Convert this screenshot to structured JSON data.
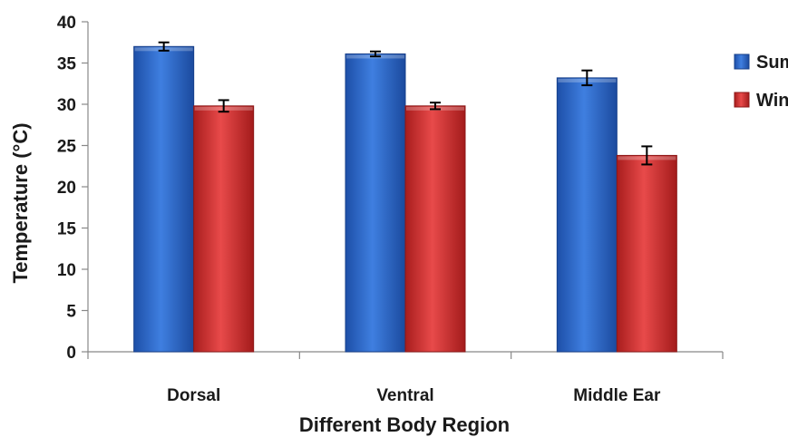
{
  "chart_data": {
    "type": "bar",
    "categories": [
      "Dorsal",
      "Ventral",
      "Middle Ear"
    ],
    "series": [
      {
        "name": "Summer",
        "color": "#2a64c8",
        "values": [
          37.0,
          36.1,
          33.2
        ],
        "errors": [
          0.5,
          0.3,
          0.9
        ]
      },
      {
        "name": "Winter",
        "color": "#d42a2a",
        "values": [
          29.8,
          29.8,
          23.8
        ],
        "errors": [
          0.7,
          0.4,
          1.1
        ]
      }
    ],
    "xlabel": "Different Body Region",
    "ylabel": "Temperature (°C)",
    "ylim": [
      0,
      40
    ],
    "yticks": [
      "0",
      "5",
      "10",
      "15",
      "20",
      "25",
      "30",
      "35",
      "40"
    ],
    "legend_position": "right",
    "grid": false
  }
}
